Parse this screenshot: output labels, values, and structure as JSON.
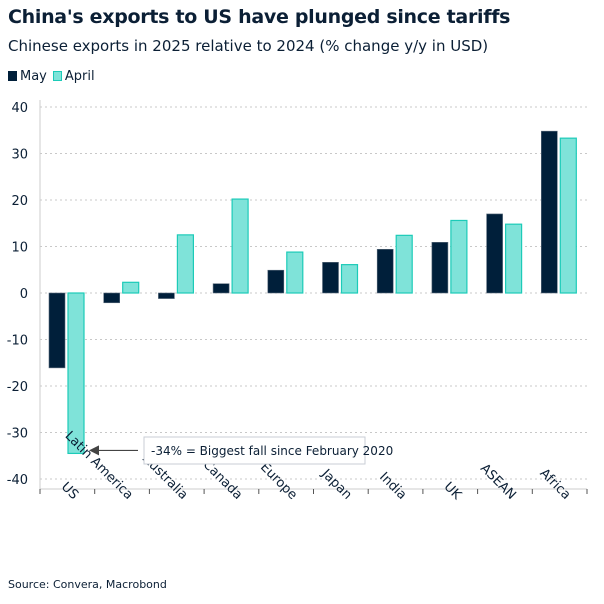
{
  "chart_data": {
    "type": "bar",
    "title": "China's exports to US have plunged since tariffs",
    "subtitle": "Chinese exports in 2025 relative to 2024 (% change y/y in USD)",
    "categories": [
      "US",
      "Latin America",
      "Australia",
      "Canada",
      "Europe",
      "Japan",
      "India",
      "UK",
      "ASEAN",
      "Africa"
    ],
    "series": [
      {
        "name": "May",
        "color": "#001f3a",
        "values": [
          -16.1,
          -2.1,
          -1.2,
          2.0,
          4.9,
          6.6,
          9.4,
          10.9,
          17.0,
          34.8
        ]
      },
      {
        "name": "April",
        "color": "#7fe3d9",
        "values": [
          -34.5,
          2.3,
          12.5,
          20.2,
          8.8,
          6.1,
          12.4,
          15.6,
          14.8,
          33.3
        ]
      }
    ],
    "ylim": [
      -40,
      40
    ],
    "yticks": [
      40,
      30,
      20,
      10,
      0,
      -10,
      -20,
      -30,
      -40
    ],
    "grid": true,
    "legend": "top-left",
    "annotation": "-34% = Biggest fall since February 2020",
    "source": "Source: Convera, Macrobond"
  }
}
